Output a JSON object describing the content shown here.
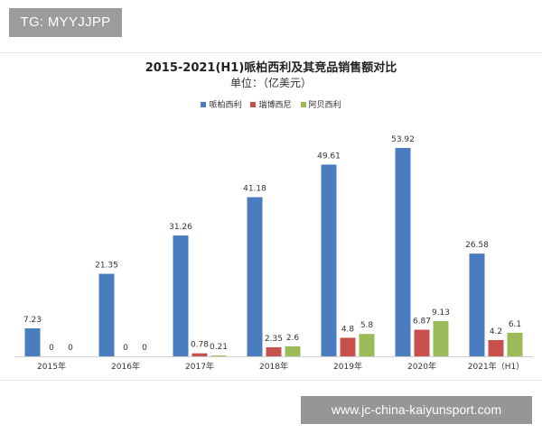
{
  "overlay": {
    "tag_text": "TG: MYYJJPP",
    "site_text": "www.jc-china-kaiyunsport.com"
  },
  "chart_data": {
    "type": "bar",
    "title": "2015-2021(H1)哌柏西利及其竞品销售额对比",
    "subtitle": "单位：（亿美元）",
    "categories": [
      "2015年",
      "2016年",
      "2017年",
      "2018年",
      "2019年",
      "2020年",
      "2021年（H1）"
    ],
    "series": [
      {
        "name": "哌柏西利",
        "color": "#4a7cc0",
        "values": [
          7.23,
          21.35,
          31.26,
          41.18,
          49.61,
          53.92,
          26.58
        ],
        "labels": [
          "7.23",
          "21.35",
          "31.26",
          "41.18",
          "49.61",
          "53.92",
          "26.58"
        ]
      },
      {
        "name": "瑞博西尼",
        "color": "#c8504c",
        "values": [
          0,
          0,
          0.78,
          2.35,
          4.8,
          6.87,
          4.2
        ],
        "labels": [
          "0",
          "0",
          "0.78",
          "2.35",
          "4.8",
          "6.87",
          "4.2"
        ]
      },
      {
        "name": "阿贝西利",
        "color": "#9bbb58",
        "values": [
          0,
          0,
          0.21,
          2.6,
          5.8,
          9.13,
          6.1
        ],
        "labels": [
          "0",
          "0",
          "0.21",
          "2.6",
          "5.8",
          "9.13",
          "6.1"
        ]
      }
    ],
    "ylim": [
      0,
      60
    ],
    "grid": false,
    "legend_position": "top"
  }
}
